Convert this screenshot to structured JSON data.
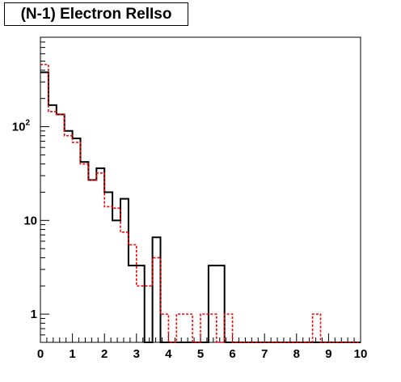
{
  "chart_data": {
    "type": "histogram",
    "title": "(N-1) Electron RelIso",
    "xlabel": "",
    "ylabel": "",
    "xlim": [
      0,
      10
    ],
    "ylim": [
      0.5,
      900
    ],
    "yscale": "log",
    "bin_width": 0.25,
    "x_ticks": [
      "0",
      "1",
      "2",
      "3",
      "4",
      "5",
      "6",
      "7",
      "8",
      "9",
      "10"
    ],
    "y_ticks": [
      {
        "value": 1,
        "label": "1"
      },
      {
        "value": 10,
        "label": "10"
      },
      {
        "value": 100,
        "label": "10^2"
      }
    ],
    "grid": false,
    "legend": "none",
    "series": [
      {
        "color": "#000000",
        "style": "solid",
        "values": [
          380,
          170,
          135,
          90,
          75,
          42,
          27,
          36,
          20,
          10,
          17,
          3.3,
          3.3,
          0,
          6.6,
          0,
          0,
          0,
          0,
          0,
          0,
          3.3,
          3.3,
          0,
          0,
          0,
          0,
          0,
          0,
          0,
          0,
          0,
          0,
          0,
          0,
          0,
          0,
          0,
          0,
          0
        ]
      },
      {
        "color": "#ff0000",
        "style": "dotted",
        "values": [
          460,
          145,
          135,
          80,
          68,
          40,
          27,
          32,
          14,
          13.5,
          7.5,
          5.5,
          2,
          2,
          4,
          1,
          0,
          1,
          1,
          0,
          1,
          1,
          0,
          1,
          0,
          0,
          0,
          0,
          0,
          0,
          0,
          0,
          0,
          0,
          1,
          0,
          0,
          0,
          0,
          0
        ]
      }
    ]
  }
}
